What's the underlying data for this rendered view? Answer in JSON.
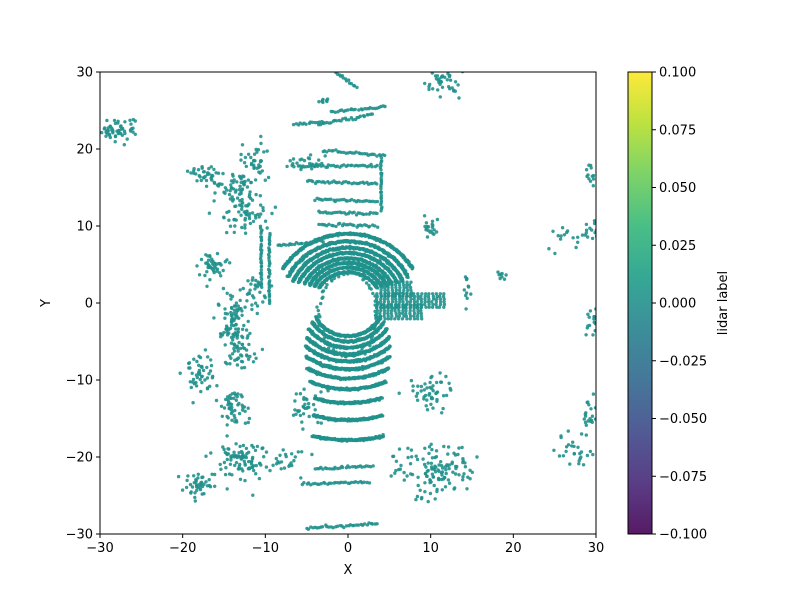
{
  "chart_data": {
    "type": "scatter",
    "title": "",
    "xlabel": "X",
    "ylabel": "Y",
    "xlim": [
      -30,
      30
    ],
    "ylim": [
      -30,
      30
    ],
    "xticks": [
      "−30",
      "−20",
      "−10",
      "0",
      "10",
      "20",
      "30"
    ],
    "yticks": [
      "−30",
      "−20",
      "−10",
      "0",
      "10",
      "20",
      "30"
    ],
    "grid": false,
    "point_color": "#21918c",
    "point_label_value": 0.0,
    "colorbar": {
      "label": "lidar label",
      "range": [
        -0.1,
        0.1
      ],
      "ticks": [
        "−0.100",
        "−0.075",
        "−0.050",
        "−0.025",
        "0.000",
        "0.025",
        "0.050",
        "0.075",
        "0.100"
      ],
      "colormap": [
        "#440154",
        "#482878",
        "#3e4989",
        "#31688e",
        "#26828e",
        "#1f9e89",
        "#35b779",
        "#6ece58",
        "#b5de2b",
        "#fde725"
      ]
    },
    "series": [
      {
        "label_value": 0.0,
        "arcs": [
          {
            "r": 4.0,
            "a0": 30,
            "a1": 150
          },
          {
            "r": 4.6,
            "a0": 28,
            "a1": 152
          },
          {
            "r": 5.2,
            "a0": 26,
            "a1": 154
          },
          {
            "r": 5.8,
            "a0": 25,
            "a1": 155
          },
          {
            "r": 6.5,
            "a0": 24,
            "a1": 156
          },
          {
            "r": 7.2,
            "a0": 23,
            "a1": 157
          },
          {
            "r": 8.0,
            "a0": 25,
            "a1": 155
          },
          {
            "r": 9.0,
            "a0": 30,
            "a1": 150
          },
          {
            "r": 4.3,
            "a0": 205,
            "a1": 335
          },
          {
            "r": 5.0,
            "a0": 210,
            "a1": 330
          },
          {
            "r": 5.8,
            "a0": 215,
            "a1": 325
          },
          {
            "r": 6.7,
            "a0": 222,
            "a1": 318
          },
          {
            "r": 7.6,
            "a0": 228,
            "a1": 312
          },
          {
            "r": 8.6,
            "a0": 234,
            "a1": 306
          },
          {
            "r": 9.8,
            "a0": 240,
            "a1": 300
          },
          {
            "r": 11.2,
            "a0": 246,
            "a1": 294
          },
          {
            "r": 13.0,
            "a0": 252,
            "a1": 288
          },
          {
            "r": 15.2,
            "a0": 254,
            "a1": 286
          },
          {
            "r": 17.8,
            "a0": 256,
            "a1": 284
          }
        ],
        "lines": [
          {
            "x0": -6.0,
            "y0": 17.8,
            "x1": 3.5,
            "y1": 17.8
          },
          {
            "x0": -3.0,
            "y0": 19.8,
            "x1": 4.5,
            "y1": 19.2
          },
          {
            "x0": -5.0,
            "y0": 15.8,
            "x1": 3.5,
            "y1": 15.5
          },
          {
            "x0": -4.0,
            "y0": 13.5,
            "x1": 3.5,
            "y1": 13.2
          },
          {
            "x0": -3.5,
            "y0": 11.8,
            "x1": 3.5,
            "y1": 11.6
          },
          {
            "x0": -3.5,
            "y0": 10.2,
            "x1": 3.5,
            "y1": 10.0
          },
          {
            "x0": -8.5,
            "y0": 7.5,
            "x1": -3.0,
            "y1": 8.0
          },
          {
            "x0": 3.0,
            "y0": 24.5,
            "x1": -3.5,
            "y1": 23.2
          },
          {
            "x0": 4.5,
            "y0": 25.5,
            "x1": -2.0,
            "y1": 24.8
          },
          {
            "x0": -6.5,
            "y0": 23.2,
            "x1": -3.0,
            "y1": 23.5
          },
          {
            "x0": -1.5,
            "y0": 30.0,
            "x1": 1.0,
            "y1": 28.0
          },
          {
            "x0": 4.0,
            "y0": 18.8,
            "x1": 4.0,
            "y1": 12.0
          },
          {
            "x0": -10.5,
            "y0": 10.0,
            "x1": -10.5,
            "y1": 2.0
          },
          {
            "x0": -9.5,
            "y0": 9.0,
            "x1": -9.5,
            "y1": 0.0
          },
          {
            "x0": -5.5,
            "y0": -23.5,
            "x1": 2.5,
            "y1": -23.3
          },
          {
            "x0": -5.0,
            "y0": -29.2,
            "x1": 3.5,
            "y1": -28.7
          },
          {
            "x0": -4.0,
            "y0": -21.5,
            "x1": 3.0,
            "y1": -21.2
          }
        ],
        "rays": [
          {
            "x0": 3.5,
            "y": 0.5,
            "x1": 12.0
          },
          {
            "x0": 3.5,
            "y": -1.0,
            "x1": 9.0
          },
          {
            "x0": 4.0,
            "y": 2.0,
            "x1": 8.0
          }
        ],
        "blobs": [
          {
            "x": -28.0,
            "y": 22.5,
            "sx": 1.2,
            "sy": 0.8,
            "n": 60
          },
          {
            "x": -17.0,
            "y": 16.5,
            "sx": 1.0,
            "sy": 0.8,
            "n": 35
          },
          {
            "x": -13.5,
            "y": 15.0,
            "sx": 1.2,
            "sy": 1.2,
            "n": 50
          },
          {
            "x": -12.5,
            "y": 12.0,
            "sx": 1.5,
            "sy": 1.5,
            "n": 70
          },
          {
            "x": -11.0,
            "y": 18.5,
            "sx": 0.8,
            "sy": 1.5,
            "n": 40
          },
          {
            "x": -5.5,
            "y": 18.0,
            "sx": 1.0,
            "sy": 0.6,
            "n": 25
          },
          {
            "x": -16.5,
            "y": 5.0,
            "sx": 0.8,
            "sy": 0.8,
            "n": 45
          },
          {
            "x": -11.5,
            "y": 1.5,
            "sx": 0.8,
            "sy": 1.0,
            "n": 30
          },
          {
            "x": -14.0,
            "y": -2.0,
            "sx": 0.8,
            "sy": 1.6,
            "n": 80
          },
          {
            "x": -13.0,
            "y": -6.0,
            "sx": 1.0,
            "sy": 1.5,
            "n": 50
          },
          {
            "x": -18.0,
            "y": -9.0,
            "sx": 1.0,
            "sy": 1.3,
            "n": 50
          },
          {
            "x": -14.0,
            "y": -13.5,
            "sx": 0.9,
            "sy": 1.2,
            "n": 55
          },
          {
            "x": -13.0,
            "y": -20.5,
            "sx": 1.5,
            "sy": 1.3,
            "n": 90
          },
          {
            "x": -18.0,
            "y": -23.5,
            "sx": 1.0,
            "sy": 0.8,
            "n": 45
          },
          {
            "x": -5.0,
            "y": -13.5,
            "sx": 1.2,
            "sy": 1.2,
            "n": 35
          },
          {
            "x": -7.5,
            "y": -20.5,
            "sx": 1.5,
            "sy": 1.0,
            "n": 25
          },
          {
            "x": 10.0,
            "y": -11.5,
            "sx": 1.3,
            "sy": 1.2,
            "n": 50
          },
          {
            "x": 10.5,
            "y": -22.0,
            "sx": 2.5,
            "sy": 1.8,
            "n": 130
          },
          {
            "x": 11.5,
            "y": 28.5,
            "sx": 1.0,
            "sy": 1.0,
            "n": 40
          },
          {
            "x": 10.0,
            "y": 9.8,
            "sx": 0.5,
            "sy": 0.6,
            "n": 20
          },
          {
            "x": 29.5,
            "y": 9.5,
            "sx": 0.8,
            "sy": 0.8,
            "n": 20
          },
          {
            "x": 29.5,
            "y": 17.0,
            "sx": 0.3,
            "sy": 0.8,
            "n": 12
          },
          {
            "x": 29.5,
            "y": -3.0,
            "sx": 0.4,
            "sy": 1.5,
            "n": 15
          },
          {
            "x": 29.5,
            "y": -14.0,
            "sx": 0.5,
            "sy": 1.5,
            "n": 20
          },
          {
            "x": 28.0,
            "y": -19.5,
            "sx": 1.5,
            "sy": 1.5,
            "n": 30
          },
          {
            "x": 26.5,
            "y": 8.5,
            "sx": 1.0,
            "sy": 0.8,
            "n": 15
          },
          {
            "x": 14.5,
            "y": 2.0,
            "sx": 0.3,
            "sy": 1.0,
            "n": 12
          },
          {
            "x": 18.5,
            "y": 3.5,
            "sx": 0.3,
            "sy": 0.4,
            "n": 8
          },
          {
            "x": -3.0,
            "y": 26.5,
            "sx": 0.5,
            "sy": 0.3,
            "n": 8
          }
        ],
        "ego_ring": {
          "rx": 3.5,
          "ry": 6.0
        }
      }
    ]
  }
}
